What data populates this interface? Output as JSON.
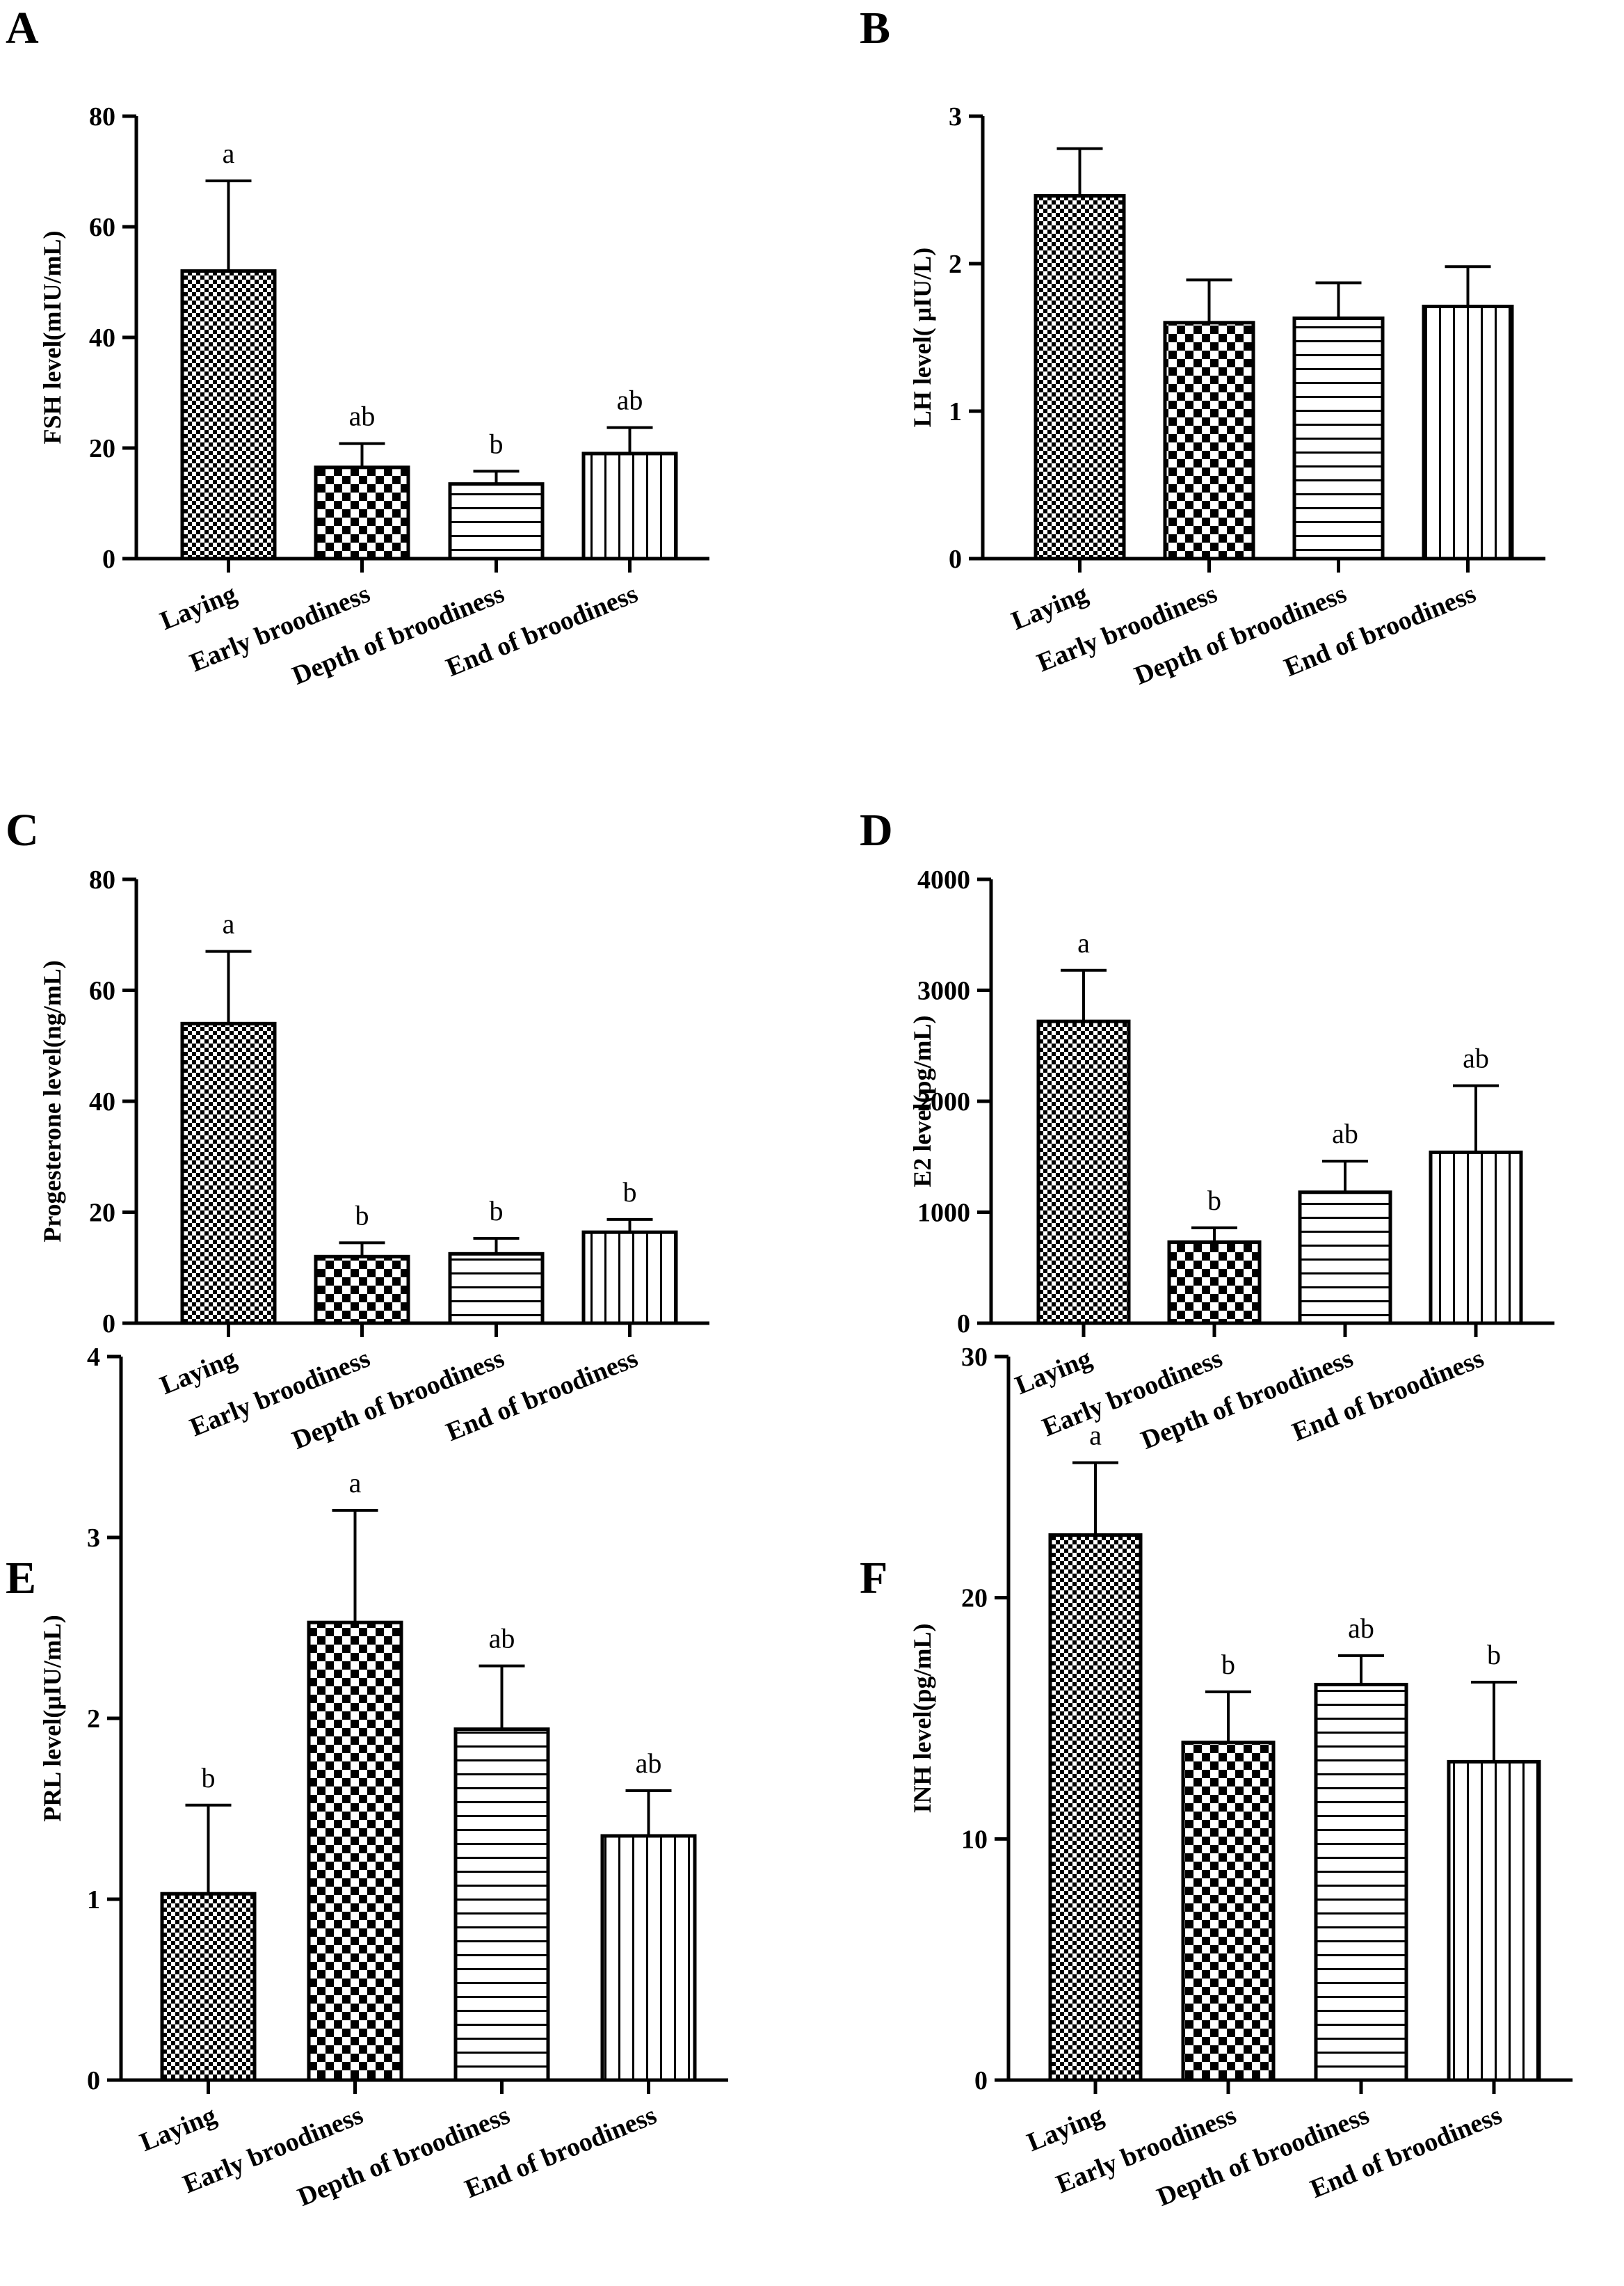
{
  "figure": {
    "categories": [
      "Laying",
      "Early broodiness",
      "Depth of broodiness",
      "End of broodiness"
    ],
    "patterns": [
      "fine-check",
      "coarse-check",
      "horizontal-lines",
      "vertical-lines"
    ]
  },
  "chart_data": [
    {
      "type": "bar",
      "panel": "A",
      "ylabel": "FSH level(mIU/mL)",
      "categories": [
        "Laying",
        "Early broodiness",
        "Depth of broodiness",
        "End of broodiness"
      ],
      "values": [
        52.0,
        16.5,
        13.5,
        19.0
      ],
      "errors": [
        16.3,
        4.3,
        2.3,
        4.7
      ],
      "significance": [
        "a",
        "ab",
        "b",
        "ab"
      ],
      "ylim": [
        0,
        80
      ],
      "yticks": [
        0,
        20,
        40,
        60,
        80
      ]
    },
    {
      "type": "bar",
      "panel": "B",
      "ylabel": "LH level( μIU/L)",
      "categories": [
        "Laying",
        "Early broodiness",
        "Depth of broodiness",
        "End of broodiness"
      ],
      "values": [
        2.46,
        1.6,
        1.63,
        1.71
      ],
      "errors": [
        0.32,
        0.29,
        0.24,
        0.27
      ],
      "significance": [
        "",
        "",
        "",
        ""
      ],
      "ylim": [
        0,
        3
      ],
      "yticks": [
        0,
        1,
        2,
        3
      ]
    },
    {
      "type": "bar",
      "panel": "C",
      "ylabel": "Progesterone level(ng/mL)",
      "categories": [
        "Laying",
        "Early broodiness",
        "Depth of broodiness",
        "End of broodiness"
      ],
      "values": [
        54.0,
        12.0,
        12.5,
        16.4
      ],
      "errors": [
        13.0,
        2.5,
        2.8,
        2.3
      ],
      "significance": [
        "a",
        "b",
        "b",
        "b"
      ],
      "ylim": [
        0,
        80
      ],
      "yticks": [
        0,
        20,
        40,
        60,
        80
      ]
    },
    {
      "type": "bar",
      "panel": "D",
      "ylabel": "E2 level(pg/mL)",
      "categories": [
        "Laying",
        "Early broodiness",
        "Depth of broodiness",
        "End of broodiness"
      ],
      "values": [
        2720,
        730,
        1180,
        1540
      ],
      "errors": [
        460,
        130,
        280,
        600
      ],
      "significance": [
        "a",
        "b",
        "ab",
        "ab"
      ],
      "ylim": [
        0,
        4000
      ],
      "yticks": [
        0,
        1000,
        2000,
        3000,
        4000
      ]
    },
    {
      "type": "bar",
      "panel": "E",
      "ylabel": "PRL level(μIU/mL)",
      "categories": [
        "Laying",
        "Early broodiness",
        "Depth of broodiness",
        "End of broodiness"
      ],
      "values": [
        1.03,
        2.53,
        1.94,
        1.35
      ],
      "errors": [
        0.49,
        0.62,
        0.35,
        0.25
      ],
      "significance": [
        "b",
        "a",
        "ab",
        "ab"
      ],
      "ylim": [
        0,
        4
      ],
      "yticks": [
        0,
        1,
        2,
        3,
        4
      ]
    },
    {
      "type": "bar",
      "panel": "F",
      "ylabel": "INH level(pg/mL)",
      "categories": [
        "Laying",
        "Early broodiness",
        "Depth of broodiness",
        "End of broodiness"
      ],
      "values": [
        22.6,
        14.0,
        16.4,
        13.2
      ],
      "errors": [
        3.0,
        2.1,
        1.2,
        3.3
      ],
      "significance": [
        "a",
        "b",
        "ab",
        "b"
      ],
      "ylim": [
        0,
        30
      ],
      "yticks": [
        0,
        10,
        20,
        30
      ]
    }
  ]
}
